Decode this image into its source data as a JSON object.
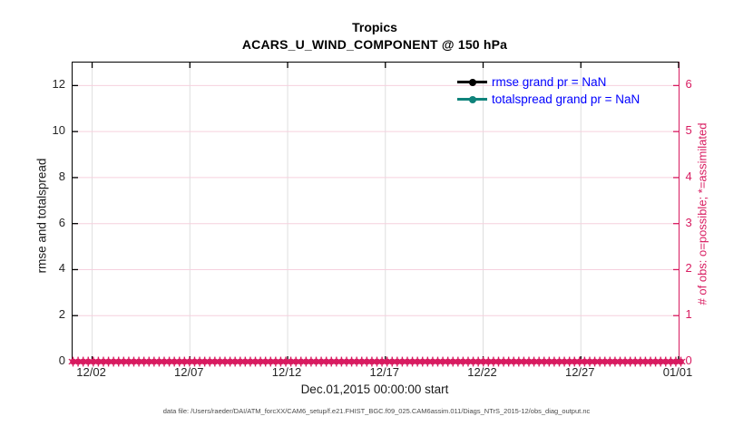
{
  "colors": {
    "accent_pink": "#d81b60",
    "teal": "#0f837b",
    "legend_text_blue": "#0000ff",
    "grid_pink": "#f6d0de",
    "grid_gray": "#dedede",
    "tick_text": "#262626",
    "title_text": "#000000"
  },
  "chart_data": {
    "type": "line",
    "title": "Tropics",
    "subtitle": "ACARS_U_WIND_COMPONENT @ 150 hPa",
    "xlabel": "Dec.01,2015 00:00:00 start",
    "ylabel_left": "rmse and totalspread",
    "ylabel_right": "# of obs: o=possible; *=assimilated",
    "x_tick_labels": [
      "12/02",
      "12/07",
      "12/12",
      "12/17",
      "12/22",
      "12/27",
      "01/01"
    ],
    "x_tick_days": [
      1,
      6,
      11,
      16,
      21,
      26,
      31
    ],
    "x_range_days": [
      0,
      31
    ],
    "ylim_left": [
      0,
      13
    ],
    "yticks_left": [
      0,
      2,
      4,
      6,
      8,
      10,
      12
    ],
    "ylim_right": [
      0,
      6.5
    ],
    "yticks_right": [
      0,
      1,
      2,
      3,
      4,
      5,
      6
    ],
    "grid": true,
    "legend_position": "upper-right-inside",
    "series": [
      {
        "name": "rmse grand pr = NaN",
        "color": "#000000",
        "grand_mean": "NaN",
        "values": []
      },
      {
        "name": "totalspread grand pr = NaN",
        "color": "#0f837b",
        "grand_mean": "NaN",
        "values": []
      }
    ],
    "obs_counts": {
      "possible": 0,
      "assimilated": 0,
      "n_times": 121,
      "value_on_axis": 0,
      "marker_color": "#d81b60"
    }
  },
  "footer": {
    "text": "data file: /Users/raeder/DAI/ATM_forcXX/CAM6_setup/f.e21.FHIST_BGC.f09_025.CAM6assim.011/Diags_NTrS_2015-12/obs_diag_output.nc"
  }
}
